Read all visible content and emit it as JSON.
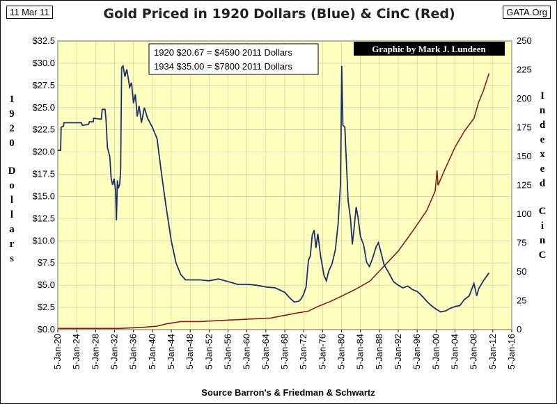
{
  "corner_date": "11 Mar 11",
  "corner_site": "GATA.Org",
  "credit": "Graphic by Mark J. Lundeen",
  "infobox": {
    "line1": "1920 $20.67 =  $4590 2011 Dollars",
    "line2": "1934 $35.00 =  $7800 2011 Dollars"
  },
  "source": "Source Barron's & Friedman & Schwartz",
  "colors": {
    "plot_bg": "#ffffc0",
    "gold": "#1a2e6b",
    "cinc": "#8b1a1a",
    "credit_bg": "#000000"
  },
  "chart_data": {
    "type": "line",
    "title": "Gold Priced in 1920 Dollars (Blue) & CinC (Red)",
    "ylabel_left": "1920 Dollars",
    "ylabel_right": "Indexed CinC",
    "xlim": [
      1920,
      2016
    ],
    "ylim_left": [
      0,
      32.5
    ],
    "ylim_right": [
      0,
      250
    ],
    "grid": true,
    "x_ticks": [
      "5-Jan-20",
      "5-Jan-24",
      "5-Jan-28",
      "5-Jan-32",
      "5-Jan-36",
      "5-Jan-40",
      "5-Jan-44",
      "5-Jan-48",
      "5-Jan-52",
      "5-Jan-56",
      "5-Jan-60",
      "5-Jan-64",
      "5-Jan-68",
      "5-Jan-72",
      "5-Jan-76",
      "5-Jan-80",
      "5-Jan-84",
      "5-Jan-88",
      "5-Jan-92",
      "5-Jan-96",
      "5-Jan-00",
      "5-Jan-04",
      "5-Jan-08",
      "5-Jan-12",
      "5-Jan-16"
    ],
    "y_ticks_left": [
      "$0.0",
      "$2.5",
      "$5.0",
      "$7.5",
      "$10.0",
      "$12.5",
      "$15.0",
      "$17.5",
      "$20.0",
      "$22.5",
      "$25.0",
      "$27.5",
      "$30.0",
      "$32.5"
    ],
    "y_ticks_right": [
      "0",
      "25",
      "50",
      "75",
      "100",
      "125",
      "150",
      "175",
      "200",
      "225",
      "250"
    ],
    "series": [
      {
        "axis": "left",
        "points": [
          [
            1920,
            20.2
          ],
          [
            1920.6,
            20.2
          ],
          [
            1920.7,
            22.8
          ],
          [
            1921.2,
            22.9
          ],
          [
            1921.3,
            23.3
          ],
          [
            1925,
            23.3
          ],
          [
            1925.2,
            23.0
          ],
          [
            1926.5,
            23.1
          ],
          [
            1926.7,
            23.4
          ],
          [
            1927.5,
            23.4
          ],
          [
            1927.6,
            23.8
          ],
          [
            1929.2,
            23.7
          ],
          [
            1929.4,
            24.8
          ],
          [
            1930,
            24.8
          ],
          [
            1930.2,
            23.6
          ],
          [
            1930.5,
            20.5
          ],
          [
            1931,
            19.5
          ],
          [
            1931.3,
            17
          ],
          [
            1931.6,
            16.3
          ],
          [
            1931.9,
            17
          ],
          [
            1932.2,
            15.8
          ],
          [
            1932.4,
            12.3
          ],
          [
            1932.6,
            16.8
          ],
          [
            1932.8,
            15.9
          ],
          [
            1933.1,
            16.4
          ],
          [
            1933.3,
            18
          ],
          [
            1933.5,
            29.5
          ],
          [
            1933.8,
            29.7
          ],
          [
            1934.2,
            28.5
          ],
          [
            1934.6,
            29.3
          ],
          [
            1935.2,
            27.3
          ],
          [
            1935.6,
            27.8
          ],
          [
            1936,
            25.5
          ],
          [
            1936.4,
            26.5
          ],
          [
            1936.8,
            24
          ],
          [
            1937.2,
            25.2
          ],
          [
            1937.7,
            23.3
          ],
          [
            1938.3,
            25
          ],
          [
            1939,
            23.8
          ],
          [
            1940,
            22.8
          ],
          [
            1941,
            21.5
          ],
          [
            1942,
            17.3
          ],
          [
            1943,
            13.5
          ],
          [
            1944,
            10
          ],
          [
            1945,
            7.5
          ],
          [
            1946,
            6.2
          ],
          [
            1947,
            5.6
          ],
          [
            1948,
            5.6
          ],
          [
            1950,
            5.6
          ],
          [
            1952,
            5.5
          ],
          [
            1954,
            5.7
          ],
          [
            1956,
            5.4
          ],
          [
            1958,
            5.1
          ],
          [
            1960,
            5.1
          ],
          [
            1962,
            5.0
          ],
          [
            1964,
            4.8
          ],
          [
            1966,
            4.7
          ],
          [
            1968,
            4.2
          ],
          [
            1969,
            3.6
          ],
          [
            1970,
            3.1
          ],
          [
            1971,
            3.2
          ],
          [
            1971.5,
            3.5
          ],
          [
            1972,
            4.0
          ],
          [
            1972.5,
            4.8
          ],
          [
            1973,
            7.8
          ],
          [
            1973.4,
            8.3
          ],
          [
            1973.8,
            10.6
          ],
          [
            1974.2,
            11.2
          ],
          [
            1974.6,
            9.2
          ],
          [
            1975,
            10.8
          ],
          [
            1975.6,
            8.2
          ],
          [
            1976.3,
            6.1
          ],
          [
            1976.8,
            5.5
          ],
          [
            1977.3,
            6.6
          ],
          [
            1978,
            7.4
          ],
          [
            1978.7,
            9.0
          ],
          [
            1979.3,
            12
          ],
          [
            1979.8,
            16.5
          ],
          [
            1980.05,
            29.7
          ],
          [
            1980.3,
            23
          ],
          [
            1980.7,
            22.8
          ],
          [
            1981,
            19.2
          ],
          [
            1981.4,
            14.5
          ],
          [
            1981.9,
            12.5
          ],
          [
            1982.3,
            9.6
          ],
          [
            1982.7,
            11.6
          ],
          [
            1983.1,
            13.8
          ],
          [
            1983.5,
            12.6
          ],
          [
            1984,
            10.5
          ],
          [
            1984.7,
            9.5
          ],
          [
            1985.3,
            7.6
          ],
          [
            1985.9,
            7.1
          ],
          [
            1986.5,
            7.9
          ],
          [
            1987.3,
            9.3
          ],
          [
            1987.8,
            9.8
          ],
          [
            1988.3,
            8.8
          ],
          [
            1989,
            7.3
          ],
          [
            1990,
            6.4
          ],
          [
            1991,
            5.4
          ],
          [
            1992,
            5.0
          ],
          [
            1993,
            4.7
          ],
          [
            1994,
            4.9
          ],
          [
            1995,
            4.5
          ],
          [
            1996,
            4.3
          ],
          [
            1997,
            3.8
          ],
          [
            1998,
            3.2
          ],
          [
            1999,
            2.7
          ],
          [
            2000,
            2.3
          ],
          [
            2001,
            2.0
          ],
          [
            2002,
            2.1
          ],
          [
            2003,
            2.4
          ],
          [
            2004,
            2.6
          ],
          [
            2005,
            2.7
          ],
          [
            2006,
            3.4
          ],
          [
            2007,
            3.8
          ],
          [
            2008,
            5.2
          ],
          [
            2008.6,
            3.8
          ],
          [
            2009,
            4.6
          ],
          [
            2010,
            5.5
          ],
          [
            2011.2,
            6.4
          ]
        ]
      },
      {
        "axis": "right",
        "points": [
          [
            1920,
            1
          ],
          [
            1933,
            1
          ],
          [
            1938,
            2
          ],
          [
            1941,
            3
          ],
          [
            1943,
            5
          ],
          [
            1946,
            7
          ],
          [
            1950,
            7
          ],
          [
            1955,
            8
          ],
          [
            1960,
            9
          ],
          [
            1965,
            10
          ],
          [
            1970,
            14
          ],
          [
            1973,
            16
          ],
          [
            1975,
            20
          ],
          [
            1978,
            25
          ],
          [
            1980,
            29
          ],
          [
            1983,
            35
          ],
          [
            1986,
            42
          ],
          [
            1989,
            55
          ],
          [
            1992,
            68
          ],
          [
            1995,
            85
          ],
          [
            1998,
            103
          ],
          [
            1999.8,
            120
          ],
          [
            2000.2,
            138
          ],
          [
            2000.4,
            125
          ],
          [
            2002,
            140
          ],
          [
            2004,
            158
          ],
          [
            2006,
            172
          ],
          [
            2008,
            183
          ],
          [
            2009,
            197
          ],
          [
            2010,
            207
          ],
          [
            2011.2,
            222
          ]
        ]
      }
    ]
  }
}
